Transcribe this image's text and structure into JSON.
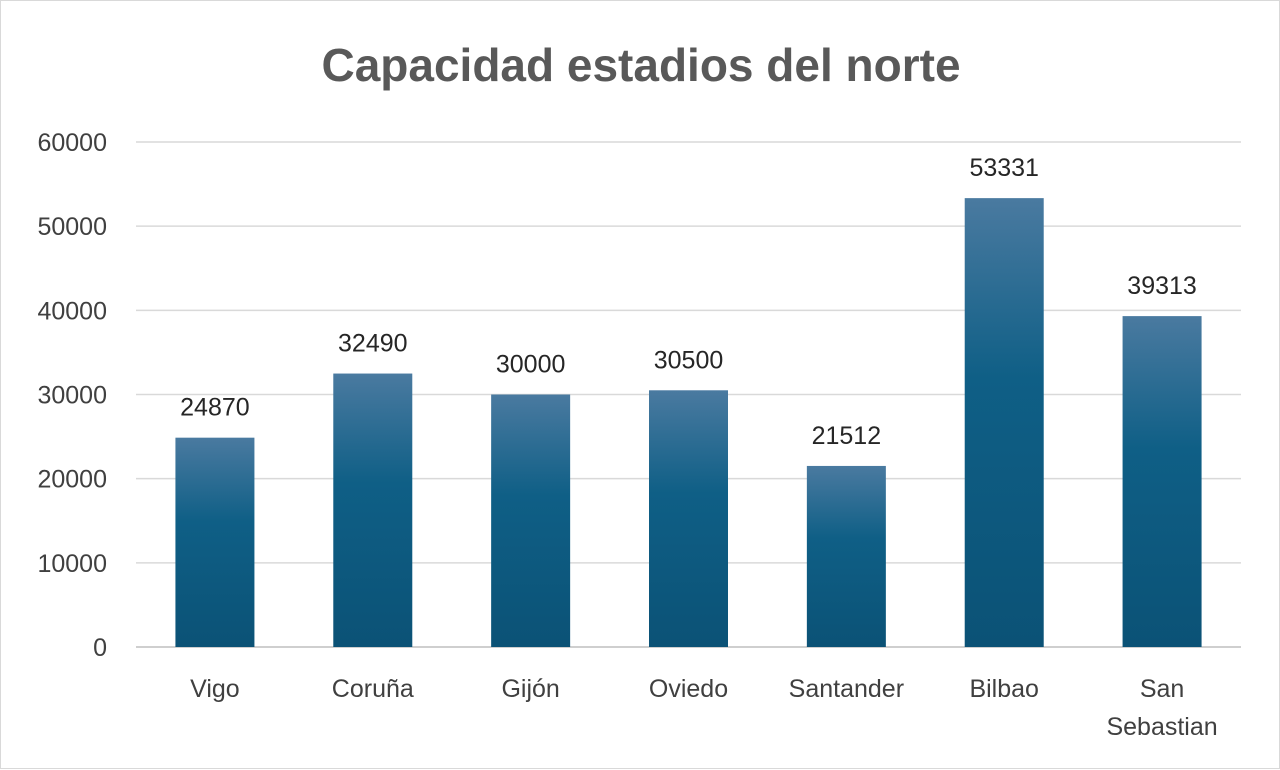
{
  "chart_data": {
    "type": "bar",
    "title": "Capacidad estadios del norte",
    "xlabel": "",
    "ylabel": "",
    "categories": [
      "Vigo",
      "Coruña",
      "Gijón",
      "Oviedo",
      "Santander",
      "Bilbao",
      "San Sebastian"
    ],
    "values": [
      24870,
      32490,
      30000,
      30500,
      21512,
      53331,
      39313
    ],
    "ylim": [
      0,
      60000
    ],
    "yticks": [
      "0",
      "10000",
      "20000",
      "30000",
      "40000",
      "50000",
      "60000"
    ],
    "grid": true,
    "legend": "none",
    "data_labels": true,
    "colors": {
      "bar_top": "#4a7aa0",
      "bar_mid": "#0f5f86",
      "bar_bottom": "#0b5276",
      "grid": "#d9d9d9",
      "text": "#404040",
      "title": "#595959"
    }
  }
}
